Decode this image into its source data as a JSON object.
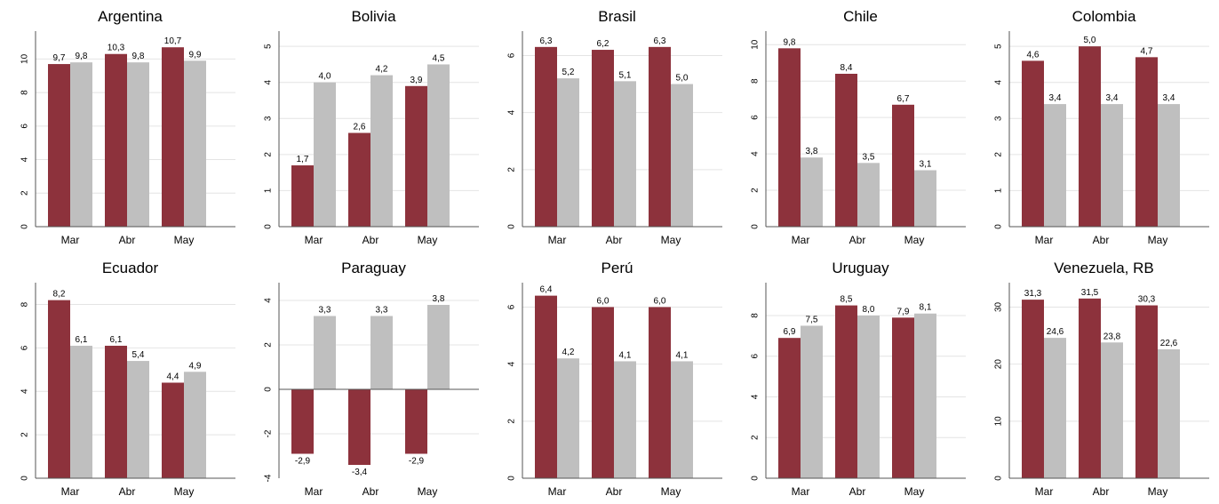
{
  "colors": {
    "series_a": "#8d323c",
    "series_b": "#bfbfbf"
  },
  "chart_data": [
    {
      "type": "bar",
      "title": "Argentina",
      "categories": [
        "Mar",
        "Abr",
        "May"
      ],
      "series": [
        {
          "values": [
            9.7,
            10.3,
            10.7
          ],
          "labels": [
            "9,7",
            "10,3",
            "10,7"
          ]
        },
        {
          "values": [
            9.8,
            9.8,
            9.9
          ],
          "labels": [
            "9,8",
            "9,8",
            "9,9"
          ]
        }
      ],
      "ylim": [
        0,
        11.4
      ],
      "yticks": [
        0,
        2,
        4,
        6,
        8,
        10
      ],
      "ytick_labels": [
        "0",
        "2",
        "4",
        "6",
        "8",
        "10"
      ],
      "grid": true
    },
    {
      "type": "bar",
      "title": "Bolivia",
      "categories": [
        "Mar",
        "Abr",
        "May"
      ],
      "series": [
        {
          "values": [
            1.7,
            2.6,
            3.9
          ],
          "labels": [
            "1,7",
            "2,6",
            "3,9"
          ]
        },
        {
          "values": [
            4.0,
            4.2,
            4.5
          ],
          "labels": [
            "4,0",
            "4,2",
            "4,5"
          ]
        }
      ],
      "ylim": [
        0,
        5.3
      ],
      "yticks": [
        0,
        1,
        2,
        3,
        4,
        5
      ],
      "ytick_labels": [
        "0",
        "1",
        "2",
        "3",
        "4",
        "5"
      ],
      "grid": true
    },
    {
      "type": "bar",
      "title": "Brasil",
      "categories": [
        "Mar",
        "Abr",
        "May"
      ],
      "series": [
        {
          "values": [
            6.3,
            6.2,
            6.3
          ],
          "labels": [
            "6,3",
            "6,2",
            "6,3"
          ]
        },
        {
          "values": [
            5.2,
            5.1,
            5.0
          ],
          "labels": [
            "5,2",
            "5,1",
            "5,0"
          ]
        }
      ],
      "ylim": [
        0,
        6.7
      ],
      "yticks": [
        0,
        2,
        4,
        6
      ],
      "ytick_labels": [
        "0",
        "2",
        "4",
        "6"
      ],
      "grid": true
    },
    {
      "type": "bar",
      "title": "Chile",
      "categories": [
        "Mar",
        "Abr",
        "May"
      ],
      "series": [
        {
          "values": [
            9.8,
            8.4,
            6.7
          ],
          "labels": [
            "9,8",
            "8,4",
            "6,7"
          ]
        },
        {
          "values": [
            3.8,
            3.5,
            3.1
          ],
          "labels": [
            "3,8",
            "3,5",
            "3,1"
          ]
        }
      ],
      "ylim": [
        0,
        10.5
      ],
      "yticks": [
        0,
        2,
        4,
        6,
        8,
        10
      ],
      "ytick_labels": [
        "0",
        "2",
        "4",
        "6",
        "8",
        "10"
      ],
      "grid": true
    },
    {
      "type": "bar",
      "title": "Colombia",
      "categories": [
        "Mar",
        "Abr",
        "May"
      ],
      "series": [
        {
          "values": [
            4.6,
            5.0,
            4.7
          ],
          "labels": [
            "4,6",
            "5,0",
            "4,7"
          ]
        },
        {
          "values": [
            3.4,
            3.4,
            3.4
          ],
          "labels": [
            "3,4",
            "3,4",
            "3,4"
          ]
        }
      ],
      "ylim": [
        0,
        5.3
      ],
      "yticks": [
        0,
        1,
        2,
        3,
        4,
        5
      ],
      "ytick_labels": [
        "0",
        "1",
        "2",
        "3",
        "4",
        "5"
      ],
      "grid": true
    },
    {
      "type": "bar",
      "title": "Ecuador",
      "categories": [
        "Mar",
        "Abr",
        "May"
      ],
      "series": [
        {
          "values": [
            8.2,
            6.1,
            4.4
          ],
          "labels": [
            "8,2",
            "6,1",
            "4,4"
          ]
        },
        {
          "values": [
            6.1,
            5.4,
            4.9
          ],
          "labels": [
            "6,1",
            "5,4",
            "4,9"
          ]
        }
      ],
      "ylim": [
        0,
        8.8
      ],
      "yticks": [
        0,
        2,
        4,
        6,
        8
      ],
      "ytick_labels": [
        "0",
        "2",
        "4",
        "6",
        "8"
      ],
      "grid": true
    },
    {
      "type": "bar",
      "title": "Paraguay",
      "categories": [
        "Mar",
        "Abr",
        "May"
      ],
      "series": [
        {
          "values": [
            -2.9,
            -3.4,
            -2.9
          ],
          "labels": [
            "-2,9",
            "-3,4",
            "-2,9"
          ]
        },
        {
          "values": [
            3.3,
            3.3,
            3.8
          ],
          "labels": [
            "3,3",
            "3,3",
            "3,8"
          ]
        }
      ],
      "ylim": [
        -4,
        4.6
      ],
      "yticks": [
        -4,
        -2,
        0,
        2,
        4
      ],
      "ytick_labels": [
        "-4",
        "-2",
        "0",
        "2",
        "4"
      ],
      "grid": true
    },
    {
      "type": "bar",
      "title": "Perú",
      "categories": [
        "Mar",
        "Abr",
        "May"
      ],
      "series": [
        {
          "values": [
            6.4,
            6.0,
            6.0
          ],
          "labels": [
            "6,4",
            "6,0",
            "6,0"
          ]
        },
        {
          "values": [
            4.2,
            4.1,
            4.1
          ],
          "labels": [
            "4,2",
            "4,1",
            "4,1"
          ]
        }
      ],
      "ylim": [
        0,
        6.7
      ],
      "yticks": [
        0,
        2,
        4,
        6
      ],
      "ytick_labels": [
        "0",
        "2",
        "4",
        "6"
      ],
      "grid": true
    },
    {
      "type": "bar",
      "title": "Uruguay",
      "categories": [
        "Mar",
        "Abr",
        "May"
      ],
      "series": [
        {
          "values": [
            6.9,
            8.5,
            7.9
          ],
          "labels": [
            "6,9",
            "8,5",
            "7,9"
          ]
        },
        {
          "values": [
            7.5,
            8.0,
            8.1
          ],
          "labels": [
            "7,5",
            "8,0",
            "8,1"
          ]
        }
      ],
      "ylim": [
        0,
        9.4
      ],
      "yticks": [
        0,
        2,
        4,
        6,
        8
      ],
      "ytick_labels": [
        "0",
        "2",
        "4",
        "6",
        "8"
      ],
      "grid": true
    },
    {
      "type": "bar",
      "title": "Venezuela, RB",
      "categories": [
        "Mar",
        "Abr",
        "May"
      ],
      "series": [
        {
          "values": [
            31.3,
            31.5,
            30.3
          ],
          "labels": [
            "31,3",
            "31,5",
            "30,3"
          ]
        },
        {
          "values": [
            24.6,
            23.8,
            22.6
          ],
          "labels": [
            "24,6",
            "23,8",
            "22,6"
          ]
        }
      ],
      "ylim": [
        0,
        33.5
      ],
      "yticks": [
        0,
        10,
        20,
        30
      ],
      "ytick_labels": [
        "0",
        "10",
        "20",
        "30"
      ],
      "grid": true
    }
  ]
}
